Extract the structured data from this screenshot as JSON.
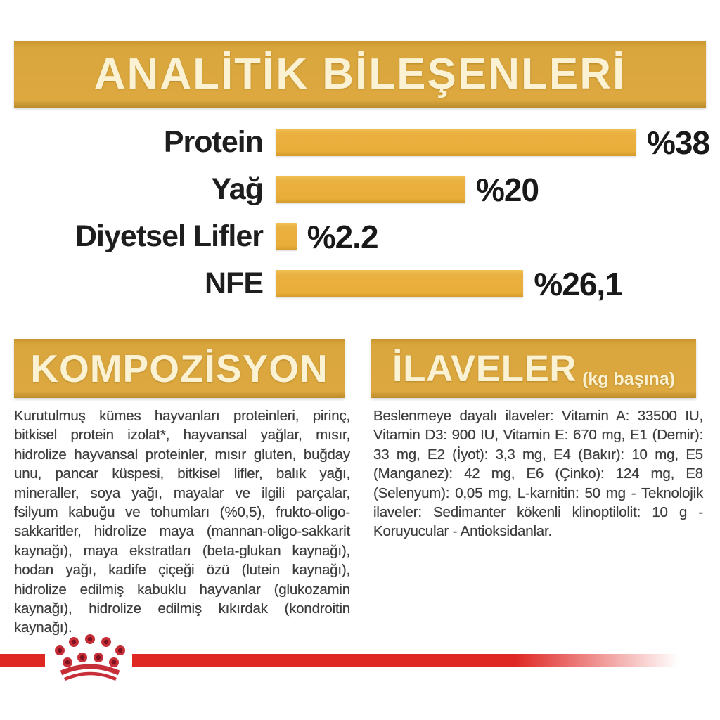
{
  "colors": {
    "gold_banner": "#DCA83F",
    "gold_bar": "#E9AE38",
    "cream_text": "#FBF2D3",
    "body_text": "#3C3C3C",
    "chart_label": "#1E1E1E",
    "brand_red": "#DF2724",
    "crown_dark_red": "#7C1220"
  },
  "analytical": {
    "title": "ANALİTİK BİLEŞENLERİ"
  },
  "chart_data": {
    "type": "bar",
    "orientation": "horizontal",
    "title": "ANALİTİK BİLEŞENLERİ",
    "categories": [
      "Protein",
      "Yağ",
      "Diyetsel Lifler",
      "NFE"
    ],
    "values": [
      38,
      20,
      2.2,
      26.1
    ],
    "value_labels": [
      "%38",
      "%20",
      "%2.2",
      "%26,1"
    ],
    "unit": "percent",
    "xlim": [
      0,
      40
    ],
    "grid": false,
    "legend": false,
    "bar_color": "#E9AE38",
    "label_position": "left",
    "value_position": "right-of-bar"
  },
  "composition": {
    "title": "KOMPOZİSYON",
    "body": "Kurutulmuş kümes hayvanları proteinleri, pirinç, bitkisel protein izolat*, hayvansal yağlar, mısır, hidrolize hayvansal proteinler, mısır gluten, buğday unu, pancar küspesi, bitkisel lifler, balık yağı, mineraller, soya yağı, mayalar ve ilgili parçalar, fsilyum kabuğu ve tohumları (%0,5), frukto-oligo-sakkaritler, hidrolize maya (mannan-oligo-sakkarit kaynağı), maya ekstratları (beta-glukan kaynağı), hodan yağı, kadife çiçeği özü (lutein kaynağı), hidrolize edilmiş kabuklu hayvanlar (glukozamin kaynağı), hidrolize edilmiş kıkırdak (kondroitin kaynağı)."
  },
  "additives": {
    "title": "İLAVELER",
    "subtitle": "(kg başına)",
    "body": "Beslenmeye dayalı ilaveler: Vitamin A: 33500 IU, Vitamin D3: 900 IU, Vitamin E: 670 mg, E1 (Demir): 33 mg, E2 (İyot): 3,3 mg, E4 (Bakır): 10 mg, E5 (Manganez): 42 mg, E6 (Çinko): 124 mg, E8 (Selenyum): 0,05 mg, L-karnitin: 50 mg - Teknolojik ilaveler: Sedimanter kökenli klinoptilolit: 10 g - Koruyucular - Antioksidanlar."
  },
  "footer": {
    "logo": "royal-canin-crown"
  }
}
